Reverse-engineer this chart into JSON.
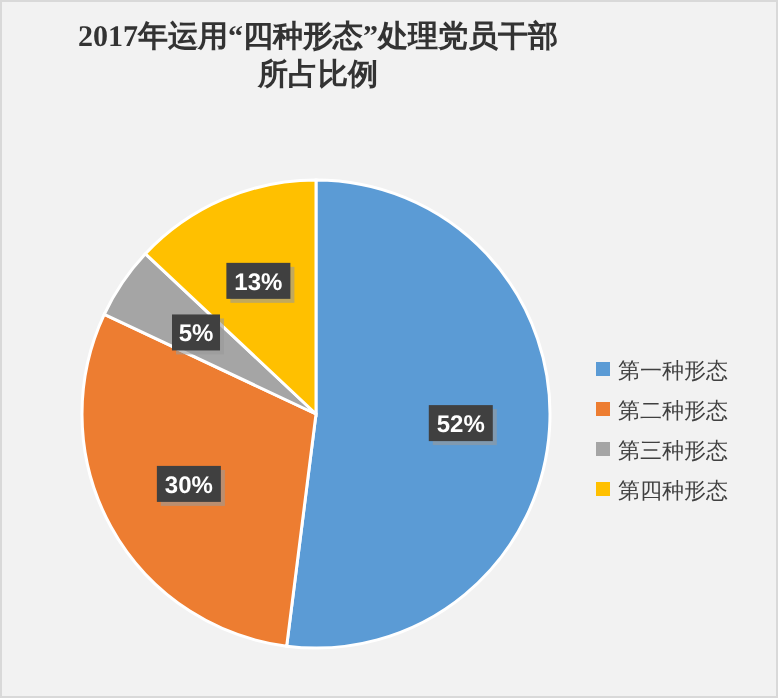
{
  "chart_data": {
    "type": "pie",
    "title": "2017年运用“四种形态”处理党员干部所占比例",
    "categories": [
      "第一种形态",
      "第二种形态",
      "第三种形态",
      "第四种形态"
    ],
    "values": [
      52,
      30,
      5,
      13
    ],
    "value_labels": [
      "52%",
      "30%",
      "5%",
      "13%"
    ],
    "colors": [
      "#5b9bd5",
      "#ed7d31",
      "#a5a5a5",
      "#ffc000"
    ],
    "legend": "right"
  }
}
